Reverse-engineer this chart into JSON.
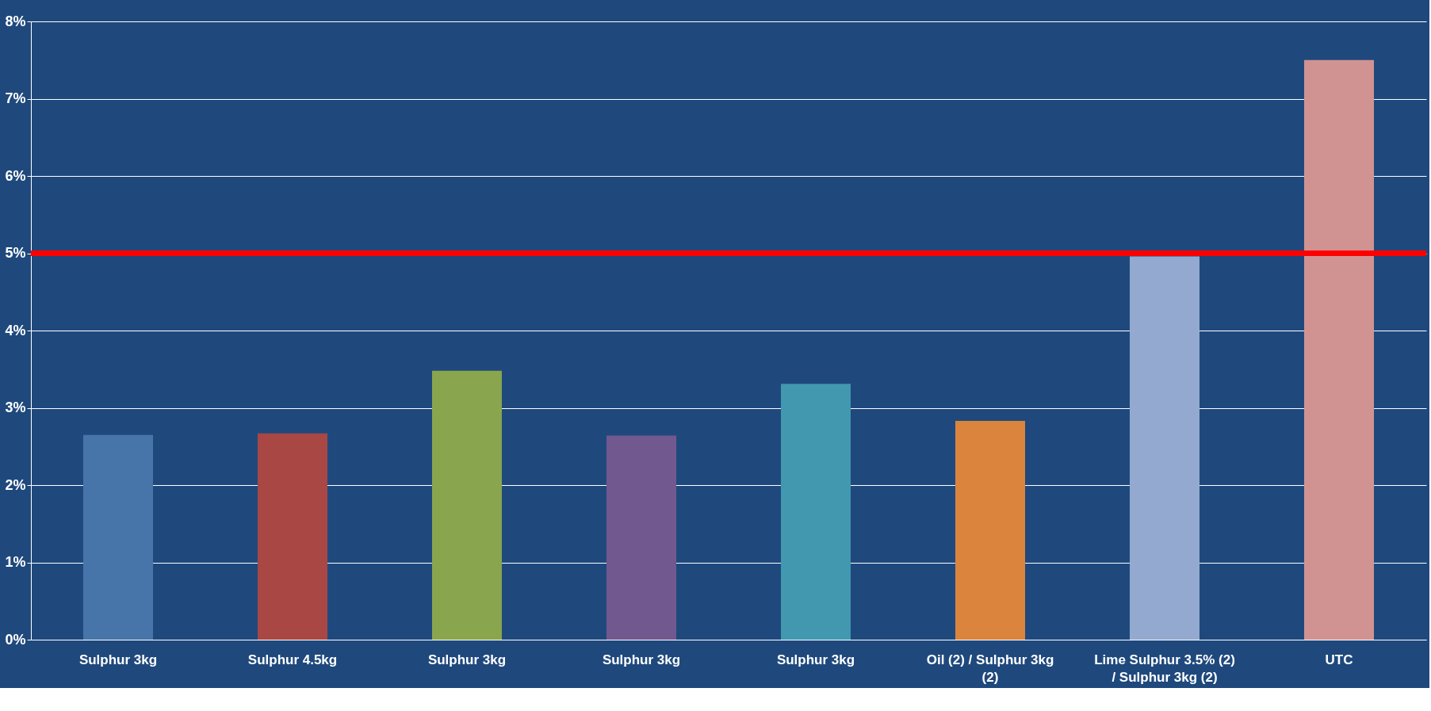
{
  "chart_data": {
    "type": "bar",
    "categories": [
      "Sulphur 3kg",
      "Sulphur 4.5kg",
      "Sulphur 3kg",
      "Sulphur 3kg",
      "Sulphur 3kg",
      "Oil (2) / Sulphur 3kg (2)",
      "Lime Sulphur 3.5% (2) / Sulphur 3kg (2)",
      "UTC"
    ],
    "values": [
      2.65,
      2.67,
      3.48,
      2.64,
      3.31,
      2.83,
      4.96,
      7.5
    ],
    "colors": [
      "#4775aa",
      "#a84744",
      "#89a54e",
      "#71588f",
      "#4198af",
      "#db843d",
      "#93a9cf",
      "#d19392"
    ],
    "ylim": [
      0,
      8
    ],
    "yticks": [
      {
        "value": 0,
        "label": "0%"
      },
      {
        "value": 1,
        "label": "1%"
      },
      {
        "value": 2,
        "label": "2%"
      },
      {
        "value": 3,
        "label": "3%"
      },
      {
        "value": 4,
        "label": "4%"
      },
      {
        "value": 5,
        "label": "5%"
      },
      {
        "value": 6,
        "label": "6%"
      },
      {
        "value": 7,
        "label": "7%"
      },
      {
        "value": 8,
        "label": "8%"
      }
    ],
    "ref_lines": [
      {
        "axis": "y",
        "value": 5,
        "color": "#ff0000"
      }
    ],
    "grid": "y"
  }
}
